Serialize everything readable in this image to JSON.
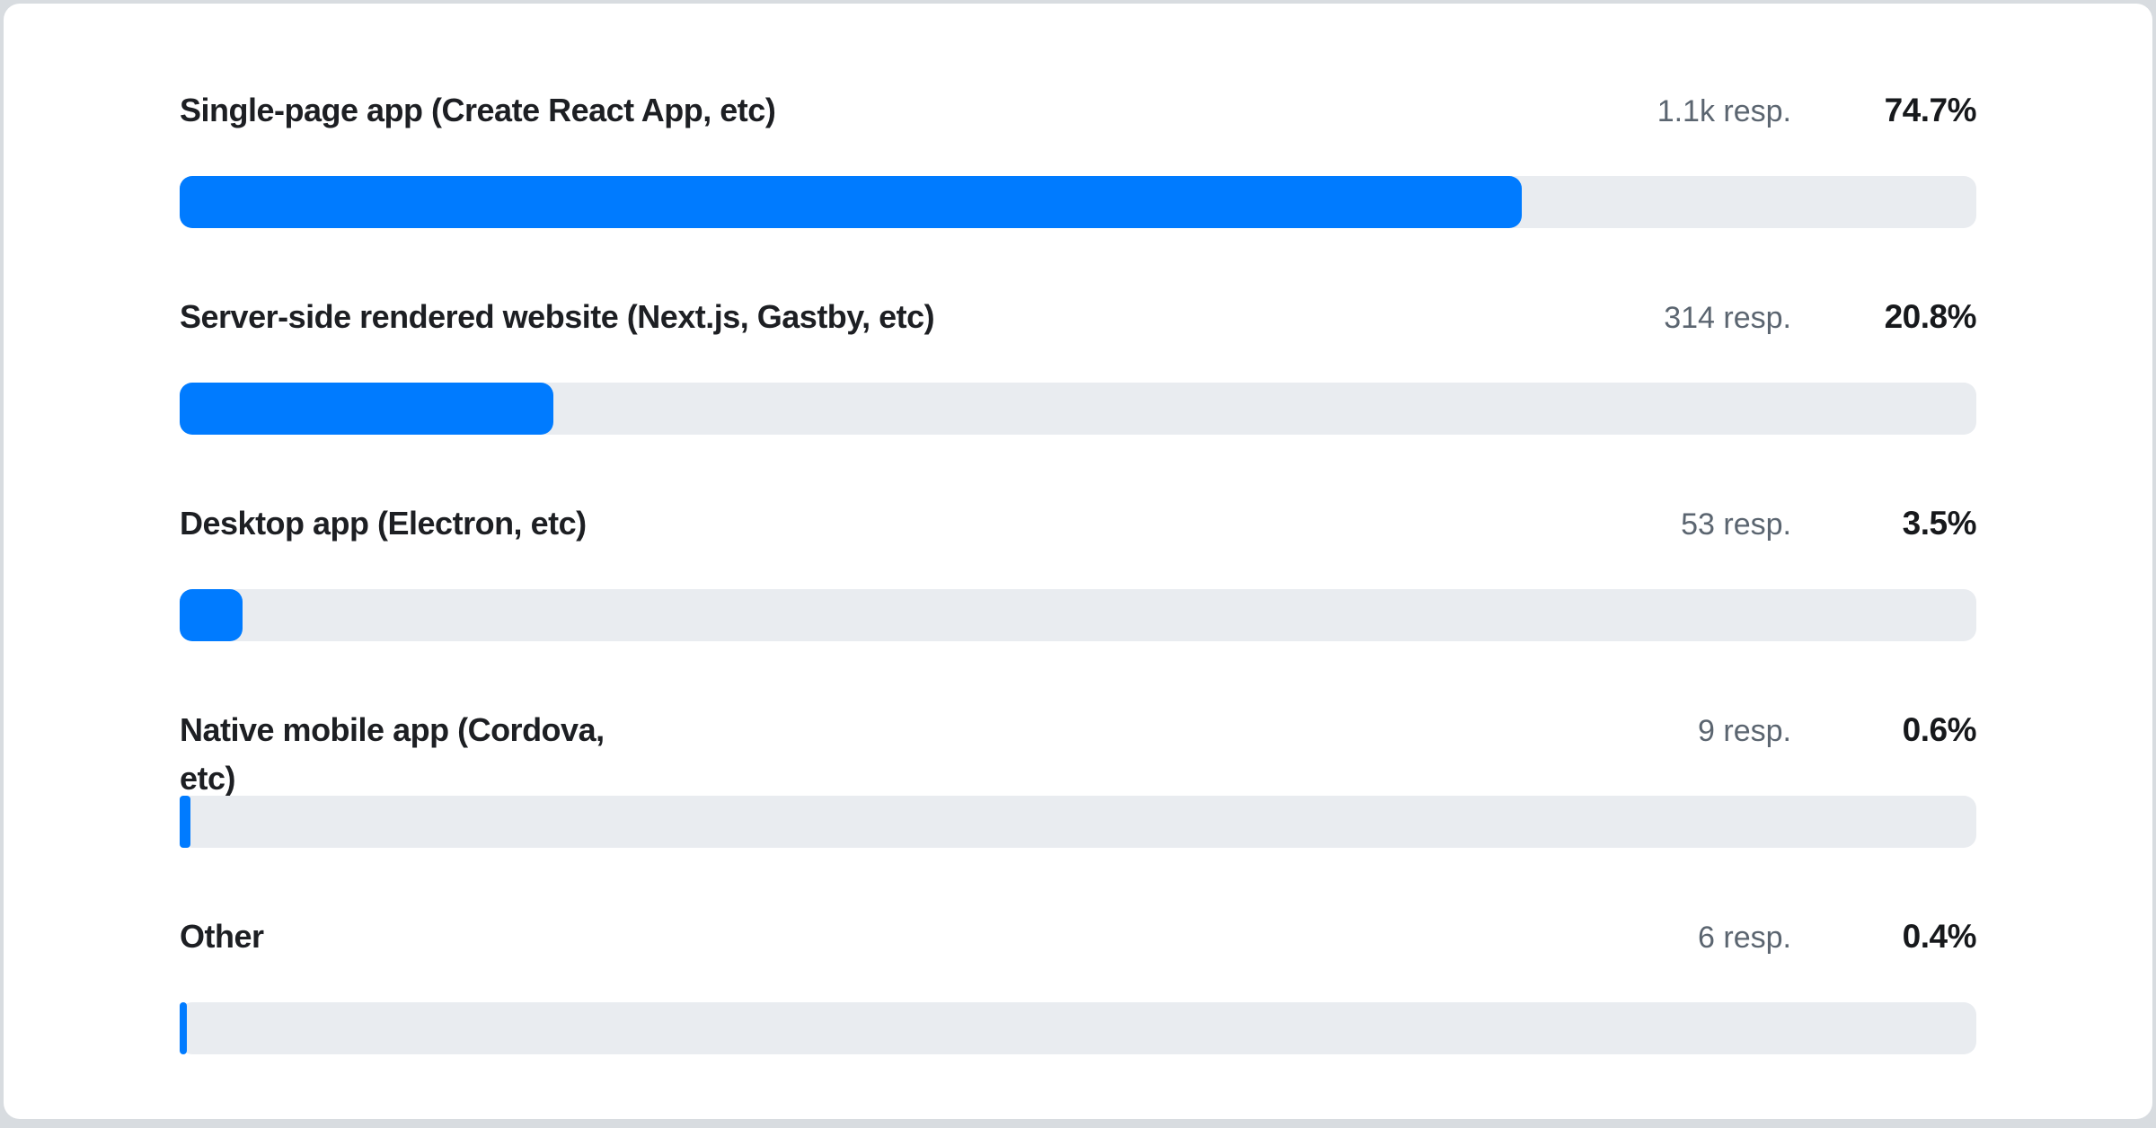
{
  "chart": {
    "bar_color": "#007BFF",
    "track_color": "#E9ECF0",
    "rows": [
      {
        "label": "Single-page app (Create React App, etc)",
        "responses": "1.1k resp.",
        "percent": "74.7%",
        "percent_value": 74.7
      },
      {
        "label": "Server-side rendered website (Next.js, Gastby, etc)",
        "responses": "314 resp.",
        "percent": "20.8%",
        "percent_value": 20.8
      },
      {
        "label": "Desktop app (Electron, etc)",
        "responses": "53 resp.",
        "percent": "3.5%",
        "percent_value": 3.5
      },
      {
        "label": "Native mobile app (Cordova,\netc)",
        "responses": "9 resp.",
        "percent": "0.6%",
        "percent_value": 0.6
      },
      {
        "label": "Other",
        "responses": "6 resp.",
        "percent": "0.4%",
        "percent_value": 0.4
      }
    ]
  },
  "chart_data": {
    "type": "bar",
    "orientation": "horizontal",
    "title": "",
    "xlabel": "",
    "ylabel": "",
    "categories": [
      "Single-page app (Create React App, etc)",
      "Server-side rendered website (Next.js, Gastby, etc)",
      "Desktop app (Electron, etc)",
      "Native mobile app (Cordova, etc)",
      "Other"
    ],
    "values_percent": [
      74.7,
      20.8,
      3.5,
      0.6,
      0.4
    ],
    "responses_labels": [
      "1.1k resp.",
      "314 resp.",
      "53 resp.",
      "9 resp.",
      "6 resp."
    ],
    "responses_approx": [
      1100,
      314,
      53,
      9,
      6
    ],
    "xlim": [
      0,
      100
    ],
    "grid": false,
    "legend": false
  }
}
